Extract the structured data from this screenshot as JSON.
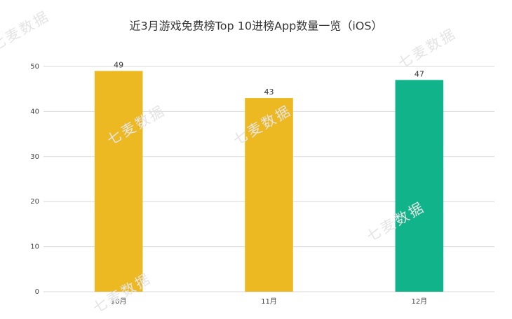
{
  "chart_data": {
    "type": "bar",
    "title": "近3月游戏免费榜Top 10进榜App数量一览（iOS）",
    "categories": [
      "10月",
      "11月",
      "12月"
    ],
    "values": [
      49,
      43,
      47
    ],
    "colors": [
      "#ecb922",
      "#ecb922",
      "#10b38a"
    ],
    "ylim": [
      0,
      50
    ],
    "yticks": [
      0,
      10,
      20,
      30,
      40,
      50
    ],
    "grid": true,
    "watermark": "七麦数据"
  }
}
